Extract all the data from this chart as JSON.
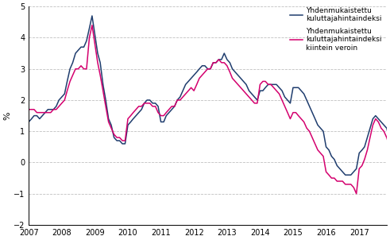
{
  "title": "",
  "ylabel": "%",
  "ylim": [
    -2,
    5
  ],
  "yticks": [
    -2,
    -1,
    0,
    1,
    2,
    3,
    4,
    5
  ],
  "xtick_years": [
    2007,
    2008,
    2009,
    2010,
    2011,
    2012,
    2013,
    2014,
    2015,
    2016,
    2017
  ],
  "line1_color": "#1f3d6e",
  "line2_color": "#d4006e",
  "line1_label": "Yhdenmukaistettu\nkuluttajahintaindeksi",
  "line2_label": "Yhdenmukaistettu\nkuluttajahintaindeksi\nkiintein veroin",
  "line_width": 1.1,
  "grid_color": "#c0c0c0",
  "grid_linestyle": "--",
  "background_color": "#ffffff",
  "hicp": [
    1.3,
    1.4,
    1.5,
    1.5,
    1.4,
    1.5,
    1.6,
    1.7,
    1.7,
    1.7,
    1.8,
    2.0,
    2.1,
    2.2,
    2.6,
    3.0,
    3.2,
    3.5,
    3.6,
    3.7,
    3.7,
    3.9,
    4.3,
    4.7,
    4.1,
    3.5,
    3.2,
    2.5,
    2.0,
    1.4,
    1.2,
    0.8,
    0.7,
    0.7,
    0.6,
    0.6,
    1.2,
    1.3,
    1.4,
    1.5,
    1.6,
    1.7,
    1.9,
    2.0,
    2.0,
    1.9,
    1.9,
    1.8,
    1.3,
    1.3,
    1.5,
    1.6,
    1.7,
    1.8,
    2.0,
    2.1,
    2.3,
    2.5,
    2.6,
    2.7,
    2.8,
    2.9,
    3.0,
    3.1,
    3.1,
    3.0,
    3.0,
    3.2,
    3.2,
    3.3,
    3.3,
    3.5,
    3.3,
    3.2,
    3.0,
    2.9,
    2.8,
    2.7,
    2.6,
    2.5,
    2.3,
    2.2,
    2.1,
    2.0,
    2.3,
    2.3,
    2.4,
    2.5,
    2.5,
    2.5,
    2.5,
    2.4,
    2.3,
    2.1,
    2.0,
    1.9,
    2.4,
    2.4,
    2.4,
    2.3,
    2.2,
    2.0,
    1.8,
    1.6,
    1.4,
    1.2,
    1.1,
    1.0,
    0.5,
    0.4,
    0.2,
    0.1,
    -0.1,
    -0.2,
    -0.3,
    -0.4,
    -0.4,
    -0.4,
    -0.3,
    -0.2,
    0.3,
    0.4,
    0.5,
    0.8,
    1.1,
    1.4,
    1.5,
    1.4,
    1.3,
    1.2,
    1.1,
    0.7
  ],
  "hicp_ct": [
    1.7,
    1.7,
    1.7,
    1.6,
    1.6,
    1.6,
    1.6,
    1.6,
    1.6,
    1.7,
    1.7,
    1.8,
    1.9,
    2.0,
    2.3,
    2.6,
    2.8,
    3.0,
    3.0,
    3.1,
    3.0,
    3.0,
    4.0,
    4.4,
    3.8,
    3.2,
    2.8,
    2.3,
    1.8,
    1.3,
    1.1,
    0.9,
    0.8,
    0.8,
    0.7,
    0.7,
    1.4,
    1.5,
    1.6,
    1.7,
    1.8,
    1.8,
    1.9,
    1.9,
    1.9,
    1.8,
    1.8,
    1.6,
    1.5,
    1.5,
    1.6,
    1.7,
    1.8,
    1.8,
    2.0,
    2.0,
    2.1,
    2.2,
    2.3,
    2.4,
    2.3,
    2.5,
    2.7,
    2.8,
    2.9,
    3.0,
    3.0,
    3.2,
    3.2,
    3.3,
    3.2,
    3.2,
    3.1,
    2.9,
    2.7,
    2.6,
    2.5,
    2.4,
    2.3,
    2.2,
    2.1,
    2.0,
    1.9,
    1.9,
    2.5,
    2.6,
    2.6,
    2.5,
    2.5,
    2.4,
    2.3,
    2.2,
    2.0,
    1.8,
    1.6,
    1.4,
    1.6,
    1.6,
    1.5,
    1.4,
    1.3,
    1.1,
    1.0,
    0.8,
    0.6,
    0.4,
    0.3,
    0.2,
    -0.3,
    -0.4,
    -0.5,
    -0.5,
    -0.6,
    -0.6,
    -0.6,
    -0.7,
    -0.7,
    -0.7,
    -0.8,
    -1.0,
    -0.2,
    -0.1,
    0.1,
    0.4,
    0.8,
    1.2,
    1.4,
    1.3,
    1.1,
    1.0,
    0.8,
    0.5
  ]
}
